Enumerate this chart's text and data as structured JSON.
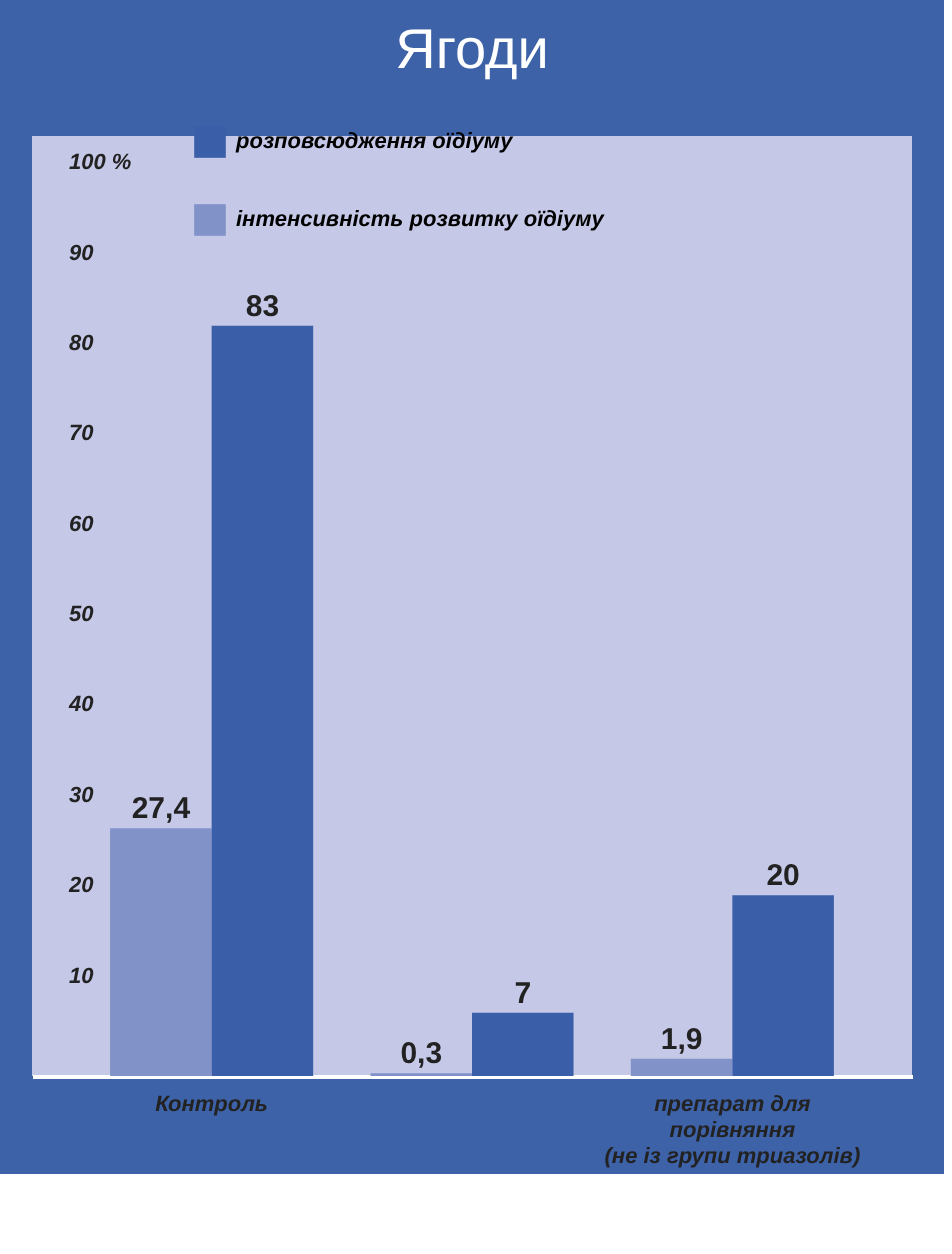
{
  "chart_data": {
    "type": "bar",
    "title": "Ягоди",
    "categories": [
      "Контроль",
      null,
      "препарат для\nпорівняння\n(не із групи триазолів)"
    ],
    "series": [
      {
        "name": "інтенсивність розвитку оїдіуму",
        "color": "#8092c8",
        "values": [
          27.4,
          0.3,
          1.9
        ],
        "value_labels": [
          "27,4",
          "0,3",
          "1,9"
        ]
      },
      {
        "name": "розповсюдження оїдіуму",
        "color": "#3a5ea8",
        "values": [
          83,
          7,
          20
        ],
        "value_labels": [
          "83",
          "7",
          "20"
        ]
      }
    ],
    "ylim": [
      0,
      104
    ],
    "yticks": [
      10,
      20,
      30,
      40,
      50,
      60,
      70,
      80,
      90,
      {
        "value": 100,
        "label": "100 %"
      }
    ],
    "grid": false,
    "legend": "top left"
  }
}
